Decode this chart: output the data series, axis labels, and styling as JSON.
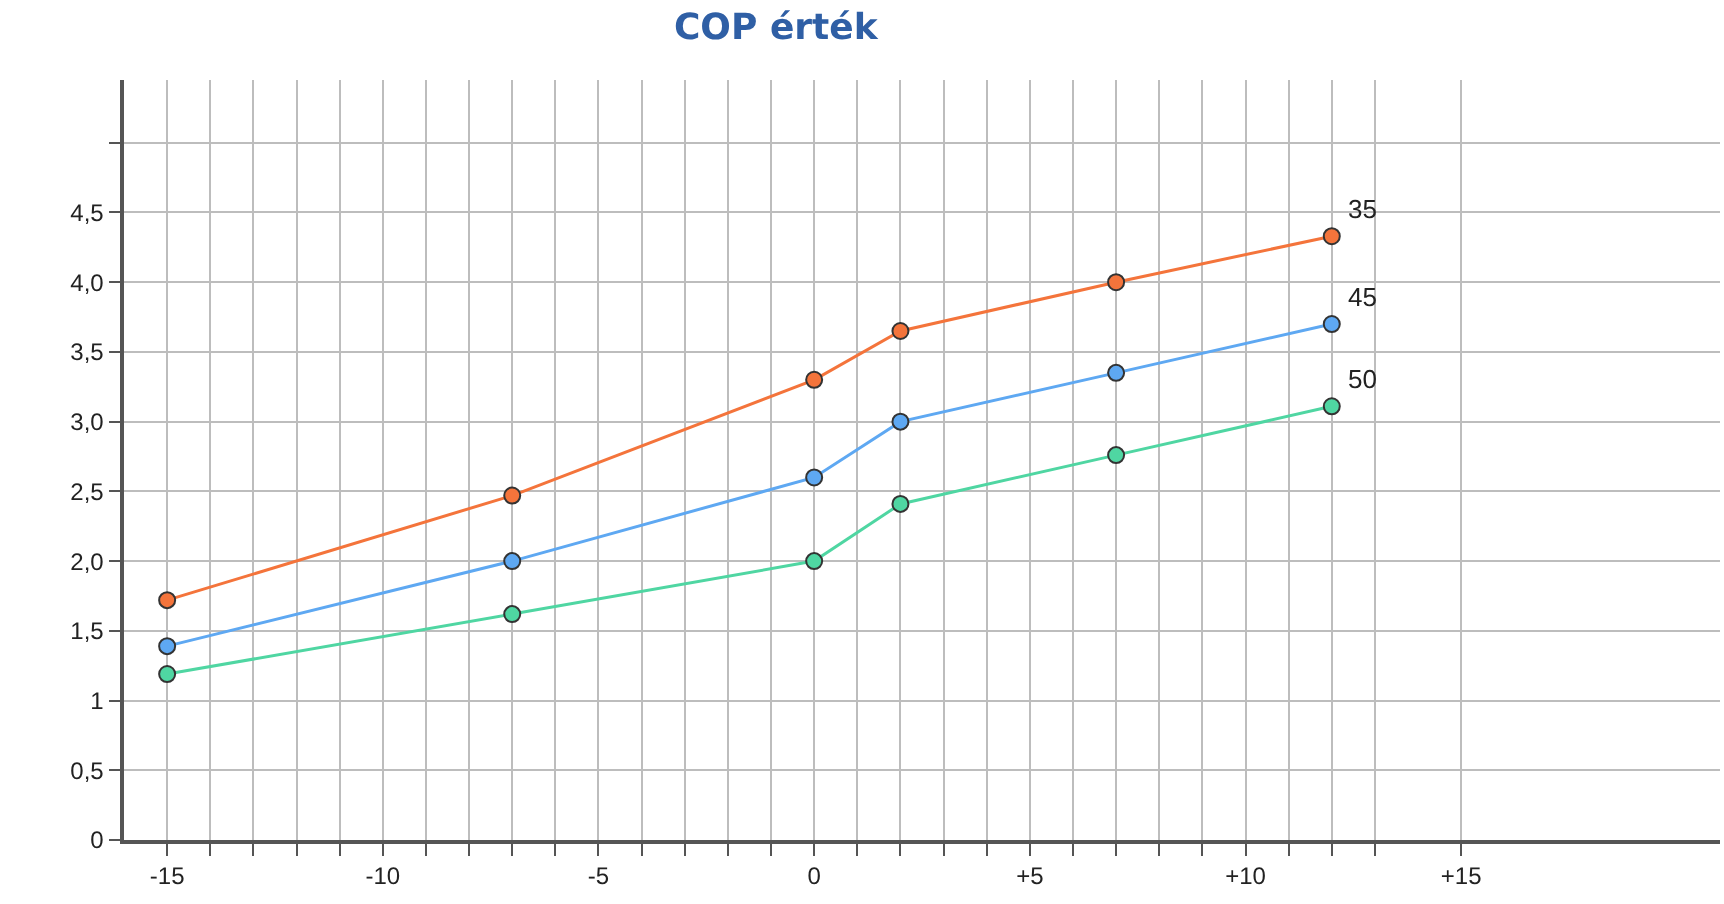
{
  "chart_data": {
    "type": "line",
    "title": "COP érték",
    "marker": "circle",
    "grid": true,
    "legend": false,
    "x": [
      -15,
      -7,
      0,
      2,
      7,
      12
    ],
    "series": [
      {
        "name": "35",
        "color": "#f4743b",
        "values": [
          1.72,
          2.47,
          3.3,
          3.65,
          4.0,
          4.33
        ]
      },
      {
        "name": "45",
        "color": "#5ea8f2",
        "values": [
          1.39,
          2.0,
          2.6,
          3.0,
          3.35,
          3.7
        ]
      },
      {
        "name": "50",
        "color": "#4fd6a2",
        "values": [
          1.19,
          1.62,
          2.0,
          2.41,
          2.76,
          3.11
        ]
      }
    ],
    "xlim": [
      -16,
      21
    ],
    "xticks": [
      {
        "value": -15,
        "label": "-15"
      },
      {
        "value": -14,
        "label": null
      },
      {
        "value": -13,
        "label": null
      },
      {
        "value": -12,
        "label": null
      },
      {
        "value": -11,
        "label": null
      },
      {
        "value": -10,
        "label": "-10"
      },
      {
        "value": -9,
        "label": null
      },
      {
        "value": -8,
        "label": null
      },
      {
        "value": -7,
        "label": null
      },
      {
        "value": -6,
        "label": null
      },
      {
        "value": -5,
        "label": "-5"
      },
      {
        "value": -4,
        "label": null
      },
      {
        "value": -3,
        "label": null
      },
      {
        "value": -2,
        "label": null
      },
      {
        "value": -1,
        "label": null
      },
      0,
      {
        "value": 1,
        "label": null
      },
      {
        "value": 2,
        "label": null
      },
      {
        "value": 3,
        "label": null
      },
      {
        "value": 4,
        "label": null
      },
      {
        "value": 5,
        "label": "+5"
      },
      {
        "value": 6,
        "label": null
      },
      {
        "value": 7,
        "label": null
      },
      {
        "value": 8,
        "label": null
      },
      {
        "value": 9,
        "label": null
      },
      {
        "value": 10,
        "label": "+10"
      },
      {
        "value": 11,
        "label": null
      },
      {
        "value": 12,
        "label": null
      },
      {
        "value": 13,
        "label": null
      },
      {
        "value": 15,
        "label": "+15"
      }
    ],
    "ylim": [
      0,
      5.45
    ],
    "yticks": [
      0,
      {
        "value": 0.5,
        "label": "0,5"
      },
      1,
      {
        "value": 1.5,
        "label": "1,5"
      },
      {
        "value": 2,
        "label": "2,0"
      },
      {
        "value": 2.5,
        "label": "2,5"
      },
      {
        "value": 3,
        "label": "3,0"
      },
      {
        "value": 3.5,
        "label": "3,5"
      },
      {
        "value": 4,
        "label": "4,0"
      },
      {
        "value": 4.5,
        "label": "4,5"
      },
      {
        "value": 5,
        "label": null
      }
    ]
  }
}
